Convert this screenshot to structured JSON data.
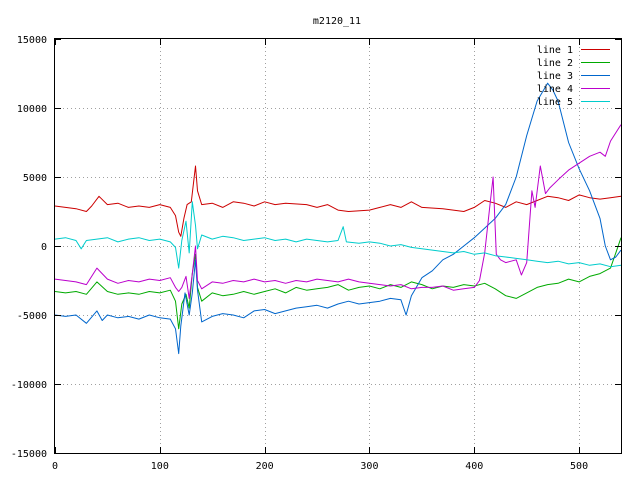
{
  "chart_data": {
    "type": "line",
    "title": "m2120_11",
    "xlabel": "",
    "ylabel": "",
    "xlim": [
      0,
      540
    ],
    "ylim": [
      -15000,
      15000
    ],
    "xticks": [
      0,
      100,
      200,
      300,
      400,
      500
    ],
    "yticks": [
      -15000,
      -10000,
      -5000,
      0,
      5000,
      10000,
      15000
    ],
    "grid": true,
    "legend_position": "top-right",
    "series": [
      {
        "name": "line 1",
        "color": "#cc0000",
        "points": [
          [
            0,
            2900
          ],
          [
            20,
            2700
          ],
          [
            30,
            2500
          ],
          [
            35,
            2900
          ],
          [
            42,
            3600
          ],
          [
            50,
            3000
          ],
          [
            60,
            3100
          ],
          [
            70,
            2800
          ],
          [
            80,
            2900
          ],
          [
            90,
            2800
          ],
          [
            100,
            3000
          ],
          [
            110,
            2800
          ],
          [
            115,
            2200
          ],
          [
            118,
            1000
          ],
          [
            120,
            700
          ],
          [
            123,
            2000
          ],
          [
            126,
            3000
          ],
          [
            130,
            3200
          ],
          [
            134,
            5800
          ],
          [
            136,
            4000
          ],
          [
            140,
            3000
          ],
          [
            150,
            3100
          ],
          [
            160,
            2800
          ],
          [
            170,
            3200
          ],
          [
            180,
            3100
          ],
          [
            190,
            2900
          ],
          [
            200,
            3200
          ],
          [
            210,
            3000
          ],
          [
            220,
            3100
          ],
          [
            240,
            3000
          ],
          [
            250,
            2800
          ],
          [
            260,
            3000
          ],
          [
            270,
            2600
          ],
          [
            280,
            2500
          ],
          [
            300,
            2600
          ],
          [
            310,
            2800
          ],
          [
            320,
            3000
          ],
          [
            330,
            2800
          ],
          [
            340,
            3200
          ],
          [
            350,
            2800
          ],
          [
            370,
            2700
          ],
          [
            380,
            2600
          ],
          [
            390,
            2500
          ],
          [
            400,
            2800
          ],
          [
            410,
            3300
          ],
          [
            420,
            3100
          ],
          [
            430,
            2800
          ],
          [
            440,
            3200
          ],
          [
            450,
            3000
          ],
          [
            460,
            3300
          ],
          [
            470,
            3600
          ],
          [
            480,
            3500
          ],
          [
            490,
            3300
          ],
          [
            500,
            3700
          ],
          [
            510,
            3500
          ],
          [
            520,
            3400
          ],
          [
            530,
            3500
          ],
          [
            540,
            3600
          ]
        ]
      },
      {
        "name": "line 2",
        "color": "#00aa00",
        "points": [
          [
            0,
            -3300
          ],
          [
            10,
            -3400
          ],
          [
            20,
            -3300
          ],
          [
            30,
            -3500
          ],
          [
            40,
            -2600
          ],
          [
            50,
            -3300
          ],
          [
            60,
            -3500
          ],
          [
            70,
            -3400
          ],
          [
            80,
            -3500
          ],
          [
            90,
            -3300
          ],
          [
            100,
            -3400
          ],
          [
            110,
            -3200
          ],
          [
            115,
            -4000
          ],
          [
            118,
            -6000
          ],
          [
            121,
            -4200
          ],
          [
            125,
            -3500
          ],
          [
            128,
            -4500
          ],
          [
            131,
            -2000
          ],
          [
            134,
            -600
          ],
          [
            136,
            -3000
          ],
          [
            140,
            -4000
          ],
          [
            150,
            -3400
          ],
          [
            160,
            -3600
          ],
          [
            170,
            -3500
          ],
          [
            180,
            -3300
          ],
          [
            190,
            -3500
          ],
          [
            200,
            -3300
          ],
          [
            210,
            -3100
          ],
          [
            220,
            -3400
          ],
          [
            230,
            -3000
          ],
          [
            240,
            -3200
          ],
          [
            250,
            -3100
          ],
          [
            260,
            -3000
          ],
          [
            270,
            -2800
          ],
          [
            280,
            -3200
          ],
          [
            290,
            -3000
          ],
          [
            300,
            -2900
          ],
          [
            310,
            -3100
          ],
          [
            320,
            -2800
          ],
          [
            330,
            -3000
          ],
          [
            340,
            -2600
          ],
          [
            350,
            -2800
          ],
          [
            360,
            -3100
          ],
          [
            370,
            -2900
          ],
          [
            380,
            -3000
          ],
          [
            390,
            -2800
          ],
          [
            400,
            -2900
          ],
          [
            410,
            -2700
          ],
          [
            420,
            -3100
          ],
          [
            430,
            -3600
          ],
          [
            440,
            -3800
          ],
          [
            450,
            -3400
          ],
          [
            460,
            -3000
          ],
          [
            470,
            -2800
          ],
          [
            480,
            -2700
          ],
          [
            490,
            -2400
          ],
          [
            500,
            -2600
          ],
          [
            510,
            -2200
          ],
          [
            520,
            -2000
          ],
          [
            530,
            -1600
          ],
          [
            535,
            -500
          ],
          [
            540,
            600
          ]
        ]
      },
      {
        "name": "line 3",
        "color": "#0066cc",
        "points": [
          [
            0,
            -5000
          ],
          [
            10,
            -5100
          ],
          [
            20,
            -5000
          ],
          [
            30,
            -5600
          ],
          [
            40,
            -4700
          ],
          [
            45,
            -5400
          ],
          [
            50,
            -5000
          ],
          [
            60,
            -5200
          ],
          [
            70,
            -5100
          ],
          [
            80,
            -5300
          ],
          [
            90,
            -5000
          ],
          [
            100,
            -5200
          ],
          [
            110,
            -5300
          ],
          [
            115,
            -6000
          ],
          [
            118,
            -7800
          ],
          [
            120,
            -5800
          ],
          [
            124,
            -3400
          ],
          [
            128,
            -5000
          ],
          [
            131,
            -3400
          ],
          [
            134,
            -1000
          ],
          [
            136,
            -3200
          ],
          [
            140,
            -5500
          ],
          [
            150,
            -5100
          ],
          [
            160,
            -4900
          ],
          [
            170,
            -5000
          ],
          [
            180,
            -5200
          ],
          [
            190,
            -4700
          ],
          [
            200,
            -4600
          ],
          [
            210,
            -4900
          ],
          [
            220,
            -4700
          ],
          [
            230,
            -4500
          ],
          [
            240,
            -4400
          ],
          [
            250,
            -4300
          ],
          [
            260,
            -4500
          ],
          [
            270,
            -4200
          ],
          [
            280,
            -4000
          ],
          [
            290,
            -4200
          ],
          [
            300,
            -4100
          ],
          [
            310,
            -4000
          ],
          [
            320,
            -3800
          ],
          [
            330,
            -3900
          ],
          [
            335,
            -5000
          ],
          [
            340,
            -3600
          ],
          [
            350,
            -2300
          ],
          [
            360,
            -1800
          ],
          [
            370,
            -1000
          ],
          [
            380,
            -600
          ],
          [
            390,
            0
          ],
          [
            400,
            600
          ],
          [
            410,
            1300
          ],
          [
            420,
            2000
          ],
          [
            430,
            3000
          ],
          [
            440,
            5000
          ],
          [
            450,
            8000
          ],
          [
            460,
            10500
          ],
          [
            470,
            11800
          ],
          [
            475,
            11300
          ],
          [
            480,
            10500
          ],
          [
            490,
            7500
          ],
          [
            500,
            5600
          ],
          [
            510,
            4000
          ],
          [
            520,
            2000
          ],
          [
            525,
            0
          ],
          [
            530,
            -1000
          ],
          [
            535,
            -800
          ],
          [
            540,
            -300
          ]
        ]
      },
      {
        "name": "line 4",
        "color": "#bb00cc",
        "points": [
          [
            0,
            -2400
          ],
          [
            10,
            -2500
          ],
          [
            20,
            -2600
          ],
          [
            30,
            -2800
          ],
          [
            40,
            -1600
          ],
          [
            50,
            -2400
          ],
          [
            60,
            -2700
          ],
          [
            70,
            -2500
          ],
          [
            80,
            -2600
          ],
          [
            90,
            -2400
          ],
          [
            100,
            -2500
          ],
          [
            110,
            -2300
          ],
          [
            115,
            -3000
          ],
          [
            118,
            -3300
          ],
          [
            121,
            -3000
          ],
          [
            125,
            -2200
          ],
          [
            128,
            -3800
          ],
          [
            131,
            -2000
          ],
          [
            134,
            0
          ],
          [
            136,
            -2500
          ],
          [
            140,
            -3100
          ],
          [
            150,
            -2600
          ],
          [
            160,
            -2700
          ],
          [
            170,
            -2500
          ],
          [
            180,
            -2600
          ],
          [
            190,
            -2400
          ],
          [
            200,
            -2600
          ],
          [
            210,
            -2500
          ],
          [
            220,
            -2700
          ],
          [
            230,
            -2500
          ],
          [
            240,
            -2600
          ],
          [
            250,
            -2400
          ],
          [
            260,
            -2500
          ],
          [
            270,
            -2600
          ],
          [
            280,
            -2400
          ],
          [
            290,
            -2600
          ],
          [
            300,
            -2700
          ],
          [
            310,
            -2800
          ],
          [
            320,
            -2900
          ],
          [
            330,
            -2800
          ],
          [
            340,
            -3100
          ],
          [
            350,
            -3000
          ],
          [
            360,
            -3000
          ],
          [
            370,
            -2900
          ],
          [
            380,
            -3200
          ],
          [
            390,
            -3100
          ],
          [
            400,
            -3000
          ],
          [
            405,
            -2500
          ],
          [
            410,
            -500
          ],
          [
            415,
            3000
          ],
          [
            418,
            5000
          ],
          [
            421,
            -600
          ],
          [
            425,
            -1000
          ],
          [
            430,
            -1200
          ],
          [
            440,
            -1000
          ],
          [
            445,
            -2100
          ],
          [
            450,
            -1200
          ],
          [
            455,
            4000
          ],
          [
            458,
            2800
          ],
          [
            463,
            5800
          ],
          [
            468,
            3800
          ],
          [
            472,
            4200
          ],
          [
            480,
            4800
          ],
          [
            490,
            5500
          ],
          [
            500,
            6000
          ],
          [
            510,
            6500
          ],
          [
            520,
            6800
          ],
          [
            525,
            6500
          ],
          [
            530,
            7600
          ],
          [
            540,
            8800
          ]
        ]
      },
      {
        "name": "line 5",
        "color": "#00cccc",
        "points": [
          [
            0,
            500
          ],
          [
            10,
            600
          ],
          [
            20,
            400
          ],
          [
            25,
            -200
          ],
          [
            30,
            400
          ],
          [
            40,
            500
          ],
          [
            50,
            600
          ],
          [
            60,
            300
          ],
          [
            70,
            500
          ],
          [
            80,
            600
          ],
          [
            90,
            400
          ],
          [
            100,
            500
          ],
          [
            110,
            300
          ],
          [
            115,
            -100
          ],
          [
            118,
            -1600
          ],
          [
            121,
            400
          ],
          [
            125,
            1800
          ],
          [
            128,
            -500
          ],
          [
            131,
            3200
          ],
          [
            134,
            1500
          ],
          [
            136,
            -200
          ],
          [
            140,
            800
          ],
          [
            150,
            500
          ],
          [
            160,
            700
          ],
          [
            170,
            600
          ],
          [
            180,
            400
          ],
          [
            190,
            500
          ],
          [
            200,
            600
          ],
          [
            210,
            400
          ],
          [
            220,
            500
          ],
          [
            230,
            300
          ],
          [
            240,
            500
          ],
          [
            250,
            400
          ],
          [
            260,
            300
          ],
          [
            270,
            400
          ],
          [
            275,
            1400
          ],
          [
            278,
            300
          ],
          [
            290,
            200
          ],
          [
            300,
            300
          ],
          [
            310,
            200
          ],
          [
            320,
            0
          ],
          [
            330,
            100
          ],
          [
            340,
            -100
          ],
          [
            350,
            -200
          ],
          [
            360,
            -300
          ],
          [
            370,
            -400
          ],
          [
            380,
            -500
          ],
          [
            390,
            -400
          ],
          [
            400,
            -600
          ],
          [
            410,
            -500
          ],
          [
            420,
            -700
          ],
          [
            430,
            -800
          ],
          [
            440,
            -900
          ],
          [
            450,
            -1000
          ],
          [
            460,
            -1100
          ],
          [
            470,
            -1200
          ],
          [
            480,
            -1100
          ],
          [
            490,
            -1300
          ],
          [
            500,
            -1200
          ],
          [
            510,
            -1400
          ],
          [
            520,
            -1300
          ],
          [
            530,
            -1500
          ],
          [
            540,
            -1400
          ]
        ]
      }
    ]
  }
}
